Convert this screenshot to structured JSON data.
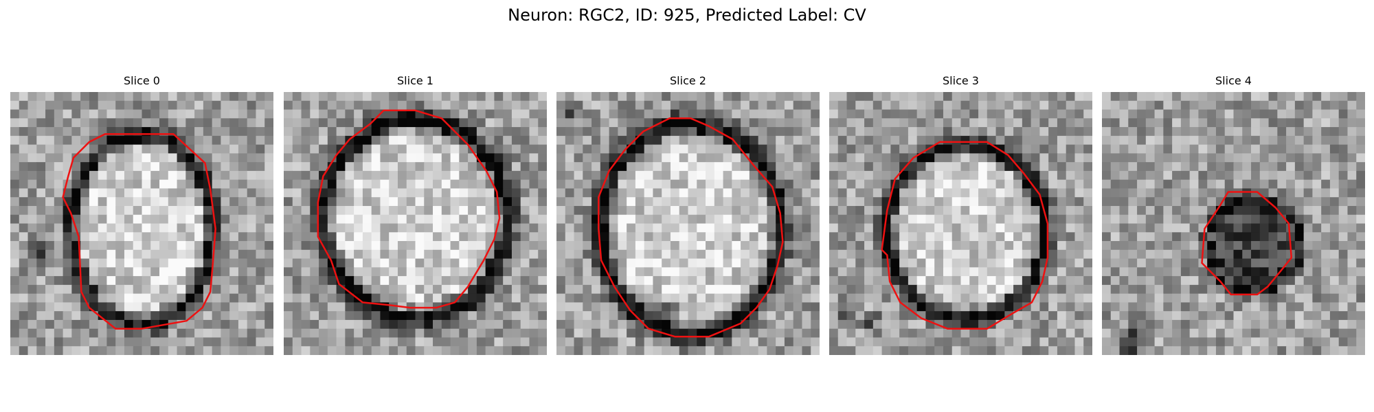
{
  "figure": {
    "title": "Neuron: RGC2, ID: 925, Predicted Label: CV"
  },
  "colors": {
    "contour": "#ee1111"
  },
  "panels": [
    {
      "title": "Slice 0",
      "center": [
        0.5,
        0.52
      ],
      "radius": [
        0.27,
        0.36
      ],
      "ring_darkness": 0.55,
      "interior_brightness": 0.2,
      "interior_darkness": 0,
      "outline": [
        [
          0.36,
          0.16
        ],
        [
          0.62,
          0.16
        ],
        [
          0.74,
          0.27
        ],
        [
          0.76,
          0.37
        ],
        [
          0.78,
          0.52
        ],
        [
          0.77,
          0.65
        ],
        [
          0.76,
          0.76
        ],
        [
          0.73,
          0.82
        ],
        [
          0.67,
          0.87
        ],
        [
          0.5,
          0.9
        ],
        [
          0.4,
          0.9
        ],
        [
          0.35,
          0.86
        ],
        [
          0.3,
          0.82
        ],
        [
          0.27,
          0.76
        ],
        [
          0.26,
          0.55
        ],
        [
          0.23,
          0.46
        ],
        [
          0.2,
          0.4
        ],
        [
          0.22,
          0.32
        ],
        [
          0.24,
          0.25
        ],
        [
          0.3,
          0.19
        ]
      ],
      "dark_spots": [
        [
          0.1,
          0.62,
          0.06
        ]
      ]
    },
    {
      "title": "Slice 1",
      "center": [
        0.5,
        0.48
      ],
      "radius": [
        0.35,
        0.38
      ],
      "ring_darkness": 0.6,
      "interior_brightness": 0.2,
      "interior_darkness": 0,
      "outline": [
        [
          0.38,
          0.07
        ],
        [
          0.5,
          0.07
        ],
        [
          0.6,
          0.1
        ],
        [
          0.7,
          0.2
        ],
        [
          0.77,
          0.3
        ],
        [
          0.81,
          0.38
        ],
        [
          0.82,
          0.48
        ],
        [
          0.8,
          0.56
        ],
        [
          0.76,
          0.64
        ],
        [
          0.7,
          0.74
        ],
        [
          0.65,
          0.8
        ],
        [
          0.58,
          0.82
        ],
        [
          0.48,
          0.82
        ],
        [
          0.4,
          0.81
        ],
        [
          0.3,
          0.8
        ],
        [
          0.21,
          0.73
        ],
        [
          0.18,
          0.64
        ],
        [
          0.13,
          0.55
        ],
        [
          0.13,
          0.42
        ],
        [
          0.15,
          0.32
        ],
        [
          0.2,
          0.24
        ],
        [
          0.25,
          0.18
        ],
        [
          0.33,
          0.12
        ]
      ],
      "dark_spots": [
        [
          0.37,
          0.12,
          0.05
        ],
        [
          0.37,
          0.8,
          0.04
        ]
      ]
    },
    {
      "title": "Slice 2",
      "center": [
        0.51,
        0.52
      ],
      "radius": [
        0.34,
        0.4
      ],
      "ring_darkness": 0.6,
      "interior_brightness": 0.2,
      "interior_darkness": 0,
      "outline": [
        [
          0.43,
          0.1
        ],
        [
          0.51,
          0.1
        ],
        [
          0.58,
          0.13
        ],
        [
          0.67,
          0.18
        ],
        [
          0.75,
          0.28
        ],
        [
          0.82,
          0.36
        ],
        [
          0.85,
          0.46
        ],
        [
          0.86,
          0.57
        ],
        [
          0.84,
          0.66
        ],
        [
          0.81,
          0.75
        ],
        [
          0.76,
          0.82
        ],
        [
          0.7,
          0.88
        ],
        [
          0.58,
          0.93
        ],
        [
          0.45,
          0.93
        ],
        [
          0.35,
          0.9
        ],
        [
          0.28,
          0.83
        ],
        [
          0.22,
          0.74
        ],
        [
          0.17,
          0.64
        ],
        [
          0.16,
          0.52
        ],
        [
          0.16,
          0.4
        ],
        [
          0.2,
          0.3
        ],
        [
          0.26,
          0.22
        ],
        [
          0.33,
          0.15
        ]
      ],
      "dark_spots": [
        [
          0.42,
          0.84,
          0.06
        ],
        [
          0.06,
          0.06,
          0.05
        ]
      ]
    },
    {
      "title": "Slice 3",
      "center": [
        0.52,
        0.53
      ],
      "radius": [
        0.3,
        0.33
      ],
      "ring_darkness": 0.6,
      "interior_brightness": 0.2,
      "interior_darkness": 0,
      "outline": [
        [
          0.42,
          0.19
        ],
        [
          0.6,
          0.19
        ],
        [
          0.68,
          0.24
        ],
        [
          0.74,
          0.31
        ],
        [
          0.8,
          0.39
        ],
        [
          0.83,
          0.5
        ],
        [
          0.83,
          0.63
        ],
        [
          0.81,
          0.72
        ],
        [
          0.77,
          0.8
        ],
        [
          0.7,
          0.84
        ],
        [
          0.6,
          0.9
        ],
        [
          0.45,
          0.9
        ],
        [
          0.35,
          0.86
        ],
        [
          0.27,
          0.8
        ],
        [
          0.23,
          0.72
        ],
        [
          0.22,
          0.62
        ],
        [
          0.2,
          0.6
        ],
        [
          0.22,
          0.45
        ],
        [
          0.25,
          0.33
        ],
        [
          0.32,
          0.25
        ]
      ],
      "dark_spots": [
        [
          0.15,
          0.87,
          0.05
        ],
        [
          0.05,
          0.84,
          0.04
        ]
      ]
    },
    {
      "title": "Slice 4",
      "center": [
        0.58,
        0.58
      ],
      "radius": [
        0.18,
        0.18
      ],
      "ring_darkness": 0.55,
      "interior_brightness": 0,
      "interior_darkness": 0.35,
      "outline": [
        [
          0.48,
          0.38
        ],
        [
          0.59,
          0.38
        ],
        [
          0.66,
          0.44
        ],
        [
          0.71,
          0.5
        ],
        [
          0.72,
          0.63
        ],
        [
          0.68,
          0.68
        ],
        [
          0.63,
          0.74
        ],
        [
          0.59,
          0.77
        ],
        [
          0.49,
          0.77
        ],
        [
          0.45,
          0.72
        ],
        [
          0.38,
          0.65
        ],
        [
          0.39,
          0.52
        ],
        [
          0.45,
          0.43
        ]
      ],
      "dark_spots": [
        [
          0.1,
          0.95,
          0.07
        ]
      ]
    }
  ]
}
